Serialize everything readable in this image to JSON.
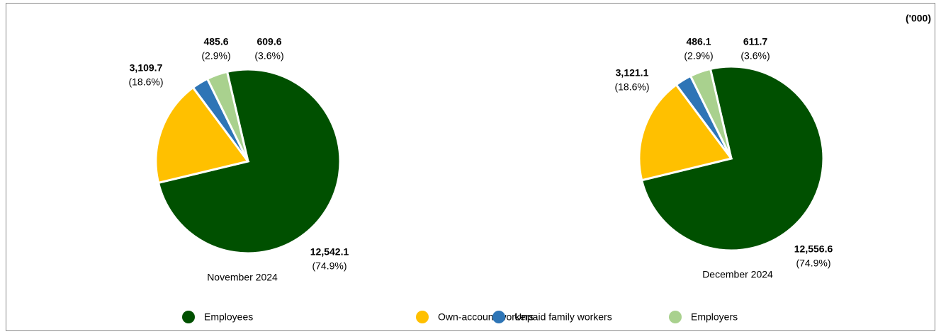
{
  "unit": "('000)",
  "legend": {
    "categories": [
      "Employees",
      "Own-account workers",
      "Unpaid family workers",
      "Employers"
    ],
    "colors": [
      "#005000",
      "#ffc000",
      "#2e75b6",
      "#a9d18e"
    ]
  },
  "chart_data": [
    {
      "type": "pie",
      "title": "November 2024",
      "values": [
        12542.1,
        3109.7,
        485.6,
        609.6
      ],
      "value_labels": [
        "12,542.1",
        "3,109.7",
        "485.6",
        "609.6"
      ],
      "percents": [
        74.9,
        18.6,
        2.9,
        3.6
      ],
      "percent_labels": [
        "(74.9%)",
        "(18.6%)",
        "(2.9%)",
        "(3.6%)"
      ]
    },
    {
      "type": "pie",
      "title": "December 2024",
      "values": [
        12556.6,
        3121.1,
        486.1,
        611.7
      ],
      "value_labels": [
        "12,556.6",
        "3,121.1",
        "486.1",
        "611.7"
      ],
      "percents": [
        74.9,
        18.6,
        2.9,
        3.6
      ],
      "percent_labels": [
        "(74.9%)",
        "(18.6%)",
        "(2.9%)",
        "(3.6%)"
      ]
    }
  ]
}
